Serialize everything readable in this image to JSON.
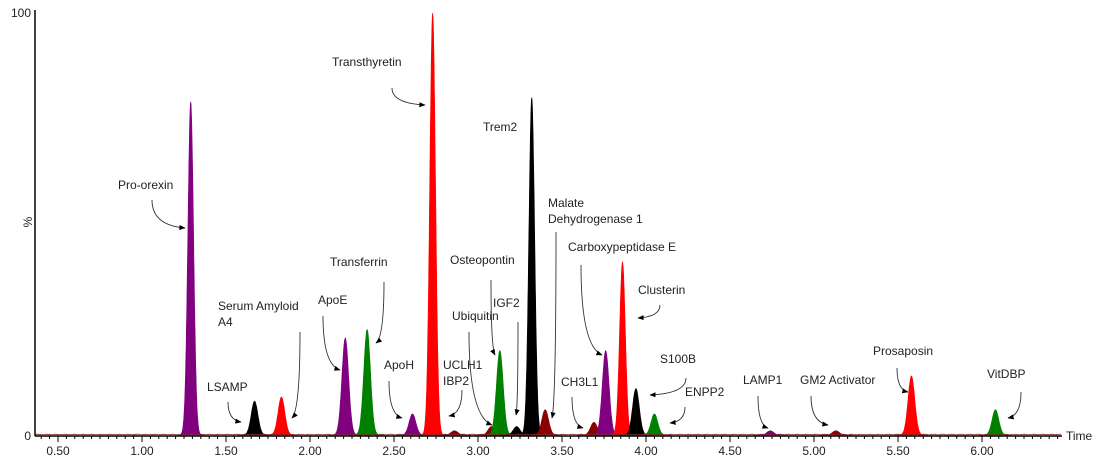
{
  "chart_data": {
    "type": "area",
    "title": "",
    "xlabel": "Time",
    "ylabel": "%",
    "xlim": [
      0.36,
      6.48
    ],
    "ylim": [
      0,
      100
    ],
    "y_ticks": [
      "0",
      "100"
    ],
    "x_ticks": [
      "0.50",
      "1.00",
      "1.50",
      "2.00",
      "2.50",
      "3.00",
      "3.50",
      "4.00",
      "4.50",
      "5.00",
      "5.50",
      "6.00"
    ],
    "grid": false,
    "colors": {
      "purple": "#800080",
      "red": "#ff0000",
      "green": "#008000",
      "black": "#000000",
      "darkred": "#8b0000"
    },
    "peaks": [
      {
        "label": "Pro-orexin",
        "rt": 1.29,
        "intensity": 79,
        "color": "purple"
      },
      {
        "label": "LSAMP",
        "rt": 1.67,
        "intensity": 8,
        "color": "black"
      },
      {
        "label": "Serum Amyloid A4",
        "rt": 1.83,
        "intensity": 9,
        "color": "red"
      },
      {
        "label": "ApoE",
        "rt": 2.21,
        "intensity": 23,
        "color": "purple"
      },
      {
        "label": "Transferrin",
        "rt": 2.34,
        "intensity": 25,
        "color": "green"
      },
      {
        "label": "ApoH",
        "rt": 2.61,
        "intensity": 5,
        "color": "purple"
      },
      {
        "label": "Transthyretin",
        "rt": 2.73,
        "intensity": 100,
        "color": "red"
      },
      {
        "label": "UCLH1 IBP2",
        "rt": 2.86,
        "intensity": 1,
        "color": "darkred"
      },
      {
        "label": "Ubiquitin",
        "rt": 3.08,
        "intensity": 2,
        "color": "darkred"
      },
      {
        "label": "Osteopontin",
        "rt": 3.13,
        "intensity": 20,
        "color": "green"
      },
      {
        "label": "IGF2",
        "rt": 3.23,
        "intensity": 2,
        "color": "black"
      },
      {
        "label": "Trem2",
        "rt": 3.32,
        "intensity": 80,
        "color": "black"
      },
      {
        "label": "Malate Dehydrogenase 1",
        "rt": 3.4,
        "intensity": 6,
        "color": "darkred"
      },
      {
        "label": "CH3L1",
        "rt": 3.69,
        "intensity": 3,
        "color": "darkred"
      },
      {
        "label": "Carboxypeptidase E",
        "rt": 3.76,
        "intensity": 20,
        "color": "purple"
      },
      {
        "label": "Clusterin",
        "rt": 3.86,
        "intensity": 41,
        "color": "red"
      },
      {
        "label": "S100B",
        "rt": 3.94,
        "intensity": 11,
        "color": "black"
      },
      {
        "label": "ENPP2",
        "rt": 4.05,
        "intensity": 5,
        "color": "green"
      },
      {
        "label": "LAMP1",
        "rt": 4.74,
        "intensity": 1,
        "color": "purple"
      },
      {
        "label": "GM2 Activator",
        "rt": 5.13,
        "intensity": 1,
        "color": "darkred"
      },
      {
        "label": "Prosaposin",
        "rt": 5.58,
        "intensity": 14,
        "color": "red"
      },
      {
        "label": "VitDBP",
        "rt": 6.08,
        "intensity": 6,
        "color": "green"
      }
    ]
  }
}
